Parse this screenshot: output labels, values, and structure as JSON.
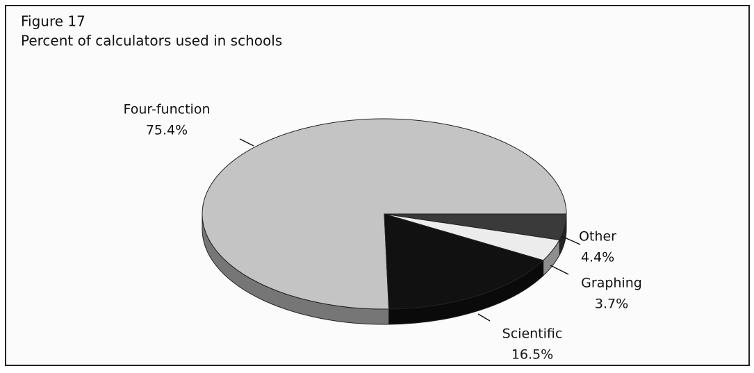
{
  "chart_data": {
    "type": "pie",
    "title": "Figure 17",
    "subtitle": "Percent of calculators used in schools",
    "categories": [
      "Four-function",
      "Scientific",
      "Graphing",
      "Other"
    ],
    "values": [
      75.4,
      16.5,
      3.7,
      4.4
    ],
    "value_labels": [
      "75.4%",
      "16.5%",
      "3.7%",
      "4.4%"
    ],
    "colors": [
      "#c4c4c4",
      "#111111",
      "#ececec",
      "#3a3a3a"
    ]
  }
}
